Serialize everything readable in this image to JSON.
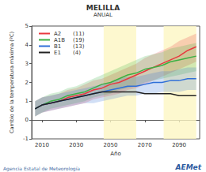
{
  "chart_data": {
    "type": "line",
    "title": "MELILLA",
    "subtitle": "ANUAL",
    "x_label": "Año",
    "y_label": "Cambio de la temperatura máxima (ºC)",
    "annotations": [
      "Agencia Estatal de Meteorología",
      "AEMet"
    ],
    "x": [
      2006,
      2010,
      2015,
      2020,
      2025,
      2030,
      2035,
      2040,
      2045,
      2050,
      2055,
      2060,
      2065,
      2070,
      2075,
      2080,
      2085,
      2090,
      2095,
      2100
    ],
    "periods": [
      [
        2046,
        2065
      ],
      [
        2081,
        2100
      ]
    ],
    "series": [
      {
        "name": "A2",
        "runs": {
          "value": 11,
          "label": "(11)"
        },
        "color": "#e8393f",
        "values": [
          0.6,
          0.8,
          0.9,
          1.0,
          1.2,
          1.3,
          1.4,
          1.6,
          1.7,
          1.9,
          2.0,
          2.2,
          2.4,
          2.6,
          2.8,
          3.0,
          3.2,
          3.4,
          3.7,
          3.9
        ],
        "lower": [
          0.2,
          0.4,
          0.5,
          0.6,
          0.7,
          0.8,
          0.9,
          1.1,
          1.2,
          1.3,
          1.4,
          1.6,
          1.7,
          1.9,
          2.1,
          2.3,
          2.5,
          2.7,
          2.9,
          3.1
        ],
        "upper": [
          1.0,
          1.2,
          1.3,
          1.4,
          1.6,
          1.7,
          1.9,
          2.1,
          2.2,
          2.4,
          2.6,
          2.8,
          3.0,
          3.3,
          3.5,
          3.7,
          3.9,
          4.2,
          4.4,
          4.6
        ]
      },
      {
        "name": "A1B",
        "runs": {
          "value": 19,
          "label": "(19)"
        },
        "color": "#3cb043",
        "values": [
          0.6,
          0.8,
          1.0,
          1.1,
          1.3,
          1.4,
          1.5,
          1.7,
          1.9,
          2.0,
          2.2,
          2.4,
          2.5,
          2.7,
          2.8,
          2.9,
          3.1,
          3.2,
          3.3,
          3.4
        ],
        "lower": [
          0.2,
          0.4,
          0.6,
          0.7,
          0.8,
          0.9,
          1.0,
          1.2,
          1.3,
          1.4,
          1.6,
          1.7,
          1.8,
          2.0,
          2.1,
          2.2,
          2.3,
          2.4,
          2.5,
          2.6
        ],
        "upper": [
          1.0,
          1.2,
          1.4,
          1.5,
          1.7,
          1.8,
          2.0,
          2.2,
          2.4,
          2.6,
          2.8,
          3.0,
          3.2,
          3.4,
          3.5,
          3.6,
          3.8,
          3.9,
          4.0,
          4.1
        ]
      },
      {
        "name": "B1",
        "runs": {
          "value": 13,
          "label": "(13)"
        },
        "color": "#2f6fd8",
        "values": [
          0.6,
          0.8,
          0.9,
          1.0,
          1.1,
          1.2,
          1.3,
          1.4,
          1.5,
          1.6,
          1.7,
          1.8,
          1.8,
          1.9,
          2.0,
          2.0,
          2.1,
          2.1,
          2.2,
          2.2
        ],
        "lower": [
          0.2,
          0.4,
          0.5,
          0.6,
          0.7,
          0.8,
          0.9,
          0.9,
          1.0,
          1.1,
          1.2,
          1.3,
          1.3,
          1.4,
          1.4,
          1.5,
          1.5,
          1.5,
          1.6,
          1.6
        ],
        "upper": [
          1.0,
          1.2,
          1.3,
          1.4,
          1.5,
          1.6,
          1.7,
          1.8,
          1.9,
          2.0,
          2.2,
          2.3,
          2.3,
          2.4,
          2.5,
          2.6,
          2.6,
          2.7,
          2.8,
          2.8
        ]
      },
      {
        "name": "E1",
        "runs": {
          "value": 4,
          "label": "(4)"
        },
        "color": "#222222",
        "values": [
          0.6,
          0.8,
          0.9,
          1.0,
          1.1,
          1.2,
          1.3,
          1.4,
          1.5,
          1.5,
          1.5,
          1.5,
          1.5,
          1.4,
          1.4,
          1.4,
          1.4,
          1.3,
          1.3,
          1.3
        ]
      }
    ],
    "xlim": [
      2004,
      2102
    ],
    "xticks": [
      2010,
      2030,
      2050,
      2070,
      2090
    ],
    "ylim": [
      -1,
      5
    ],
    "yticks": [
      -1,
      0,
      1,
      2,
      3,
      4,
      5
    ],
    "grid": false,
    "legend": "upper left"
  }
}
